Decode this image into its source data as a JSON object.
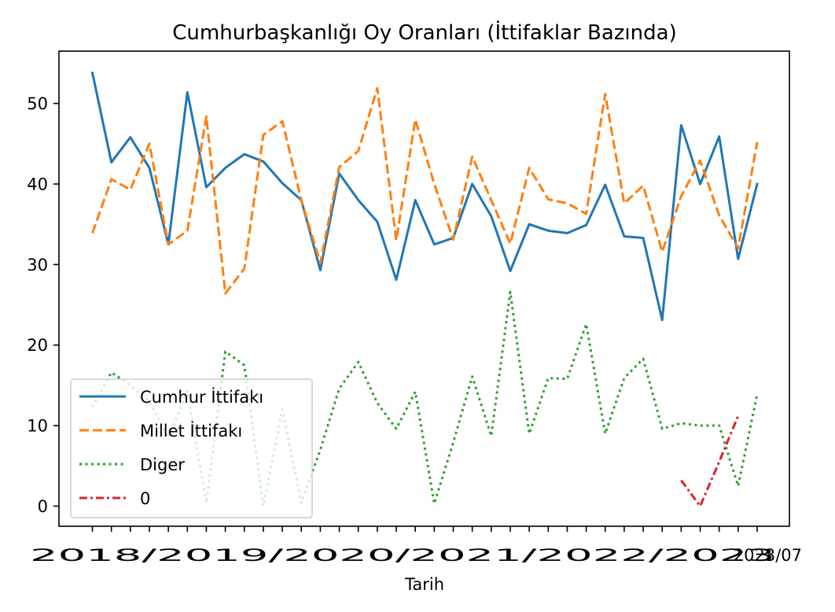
{
  "chart_data": {
    "type": "line",
    "title": "Cumhurbaşkanlığı Oy Oranları (İttifaklar Bazında)",
    "xlabel": "Tarih",
    "ylabel": "",
    "ylim": [
      -2.5,
      56.5
    ],
    "yticks": [
      0,
      10,
      20,
      30,
      40,
      50
    ],
    "xtick_text": "2018/2019/2020/2021/2022/2023",
    "xtick_last": "2023/07",
    "grid": false,
    "legend_position": "lower-left",
    "series": [
      {
        "name": "Cumhur İttifakı",
        "color": "#1f77b4",
        "style": "solid",
        "values": [
          53.8,
          42.7,
          45.8,
          42.0,
          32.5,
          51.4,
          39.6,
          42.0,
          43.7,
          42.8,
          40.1,
          38.0,
          29.3,
          41.3,
          38.0,
          35.3,
          28.1,
          38.0,
          32.5,
          33.3,
          40.0,
          36.0,
          29.2,
          35.0,
          34.2,
          33.9,
          34.9,
          39.9,
          33.5,
          33.3,
          23.1,
          47.3,
          40.0,
          45.9,
          30.7,
          40.0
        ]
      },
      {
        "name": "Millet İttifakı",
        "color": "#ff7f0e",
        "style": "dashed",
        "values": [
          33.9,
          40.6,
          39.3,
          45.0,
          32.5,
          34.2,
          48.4,
          26.4,
          29.5,
          46.1,
          47.8,
          38.0,
          30.2,
          42.1,
          44.1,
          51.9,
          33.0,
          48.0,
          40.0,
          33.1,
          43.4,
          38.0,
          32.6,
          42.0,
          38.1,
          37.6,
          36.3,
          51.2,
          37.6,
          39.8,
          31.6,
          38.5,
          42.9,
          36.1,
          32.0,
          45.2
        ]
      },
      {
        "name": "Diger",
        "color": "#2ca02c",
        "style": "dotted",
        "values": [
          12.3,
          16.6,
          15.0,
          13.0,
          8.5,
          14.3,
          0.4,
          19.2,
          17.5,
          0.0,
          12.0,
          0.4,
          7.0,
          14.6,
          17.9,
          12.8,
          9.6,
          14.2,
          0.3,
          7.9,
          16.1,
          8.7,
          26.6,
          9.0,
          15.9,
          15.8,
          22.6,
          9.0,
          15.9,
          18.3,
          9.6,
          10.3,
          10.0,
          10.0,
          2.5,
          13.9
        ]
      },
      {
        "name": "0",
        "color": "#d62728",
        "style": "dashdot",
        "values": [
          null,
          null,
          null,
          null,
          null,
          null,
          null,
          null,
          null,
          null,
          null,
          null,
          null,
          null,
          null,
          null,
          null,
          null,
          null,
          null,
          null,
          null,
          null,
          null,
          null,
          null,
          null,
          null,
          null,
          null,
          null,
          3.2,
          0.0,
          5.5,
          11.2,
          null
        ]
      }
    ]
  }
}
